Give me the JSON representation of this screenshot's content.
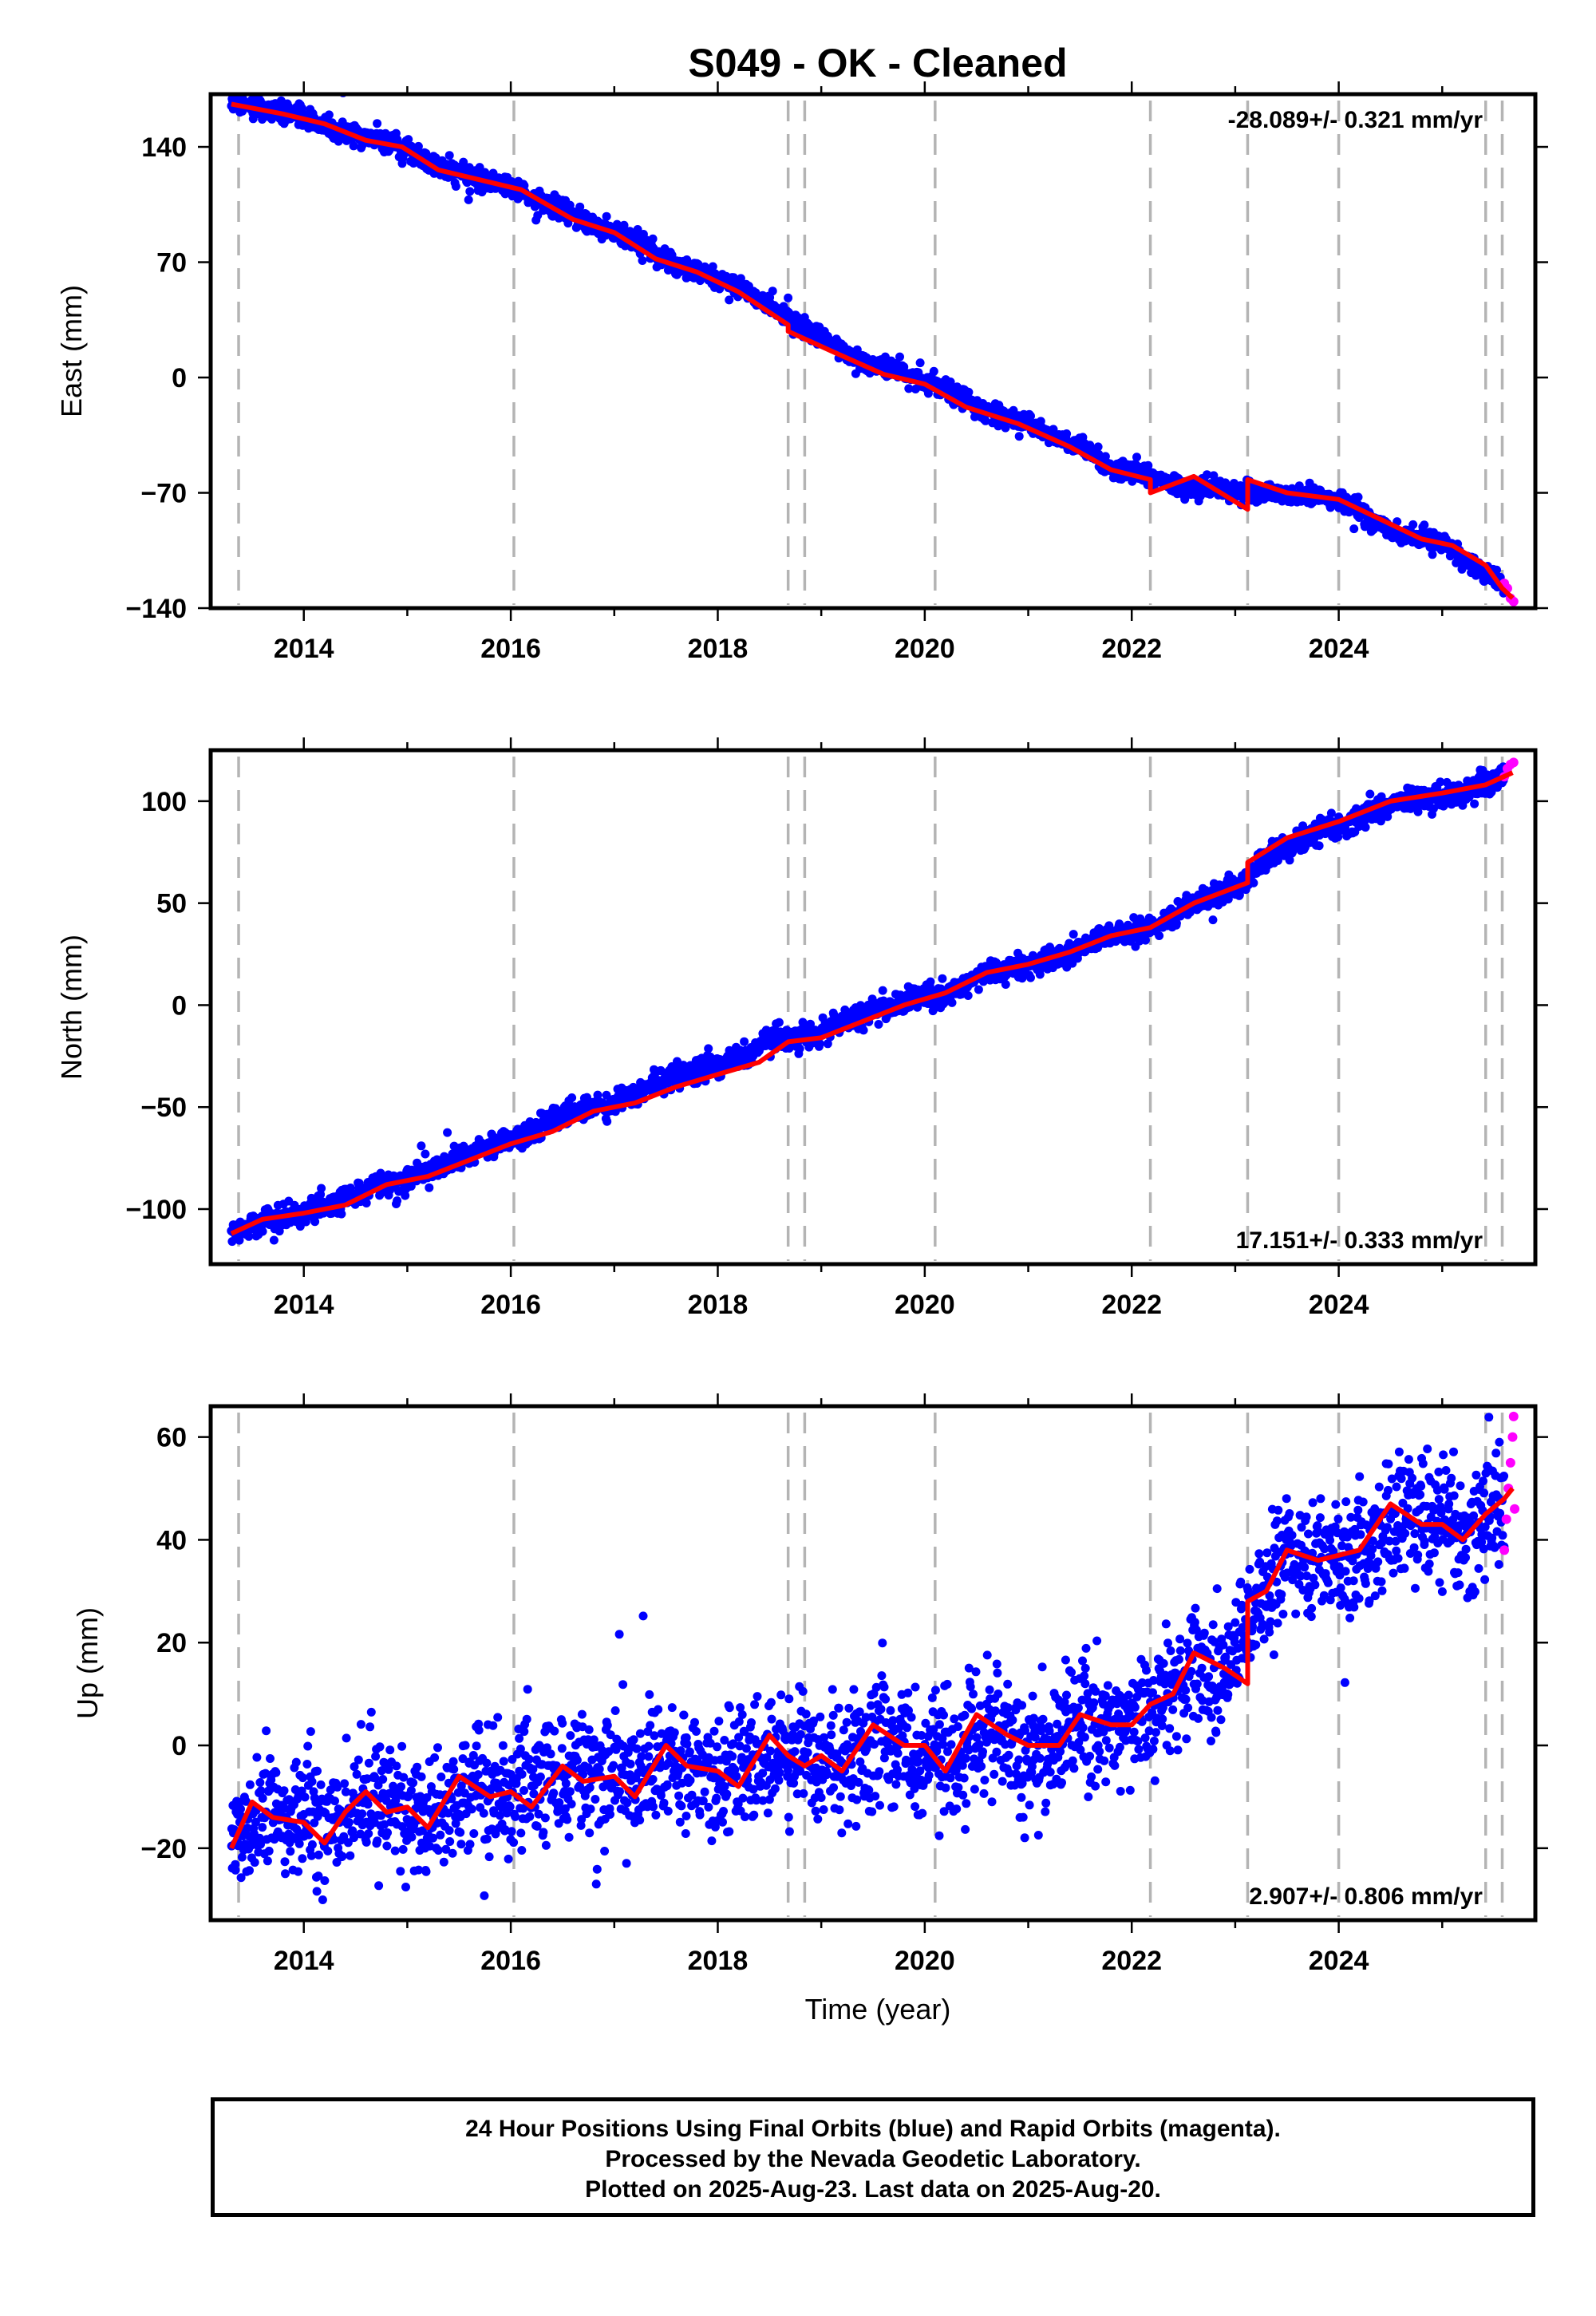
{
  "title": "S049  - OK - Cleaned",
  "xlabel": "Time (year)",
  "colors": {
    "final": "#0000ff",
    "rapid": "#ff00ff",
    "fit": "#ff0000",
    "events": "#b4b4b4"
  },
  "footer": [
    "24 Hour Positions Using Final Orbits (blue) and Rapid Orbits (magenta).",
    "Processed by the Nevada Geodetic Laboratory.",
    "Plotted on 2025-Aug-23. Last data on 2025-Aug-20."
  ],
  "chart_data": [
    {
      "type": "scatter",
      "ylabel": "East (mm)",
      "rate_text": "-28.089+/- 0.321 mm/yr",
      "rate_position": "top-right",
      "xlim": [
        2013.1,
        2025.9
      ],
      "ylim": [
        -140,
        172
      ],
      "xticks": [
        "2014",
        "2016",
        "2018",
        "2020",
        "2022",
        "2024"
      ],
      "yticks": [
        "140",
        "70",
        "0",
        "−70",
        "−140"
      ],
      "ytick_values": [
        140,
        70,
        0,
        -70,
        -140
      ],
      "event_lines": [
        2013.37,
        2016.03,
        2018.68,
        2018.84,
        2020.1,
        2022.18,
        2023.12,
        2024.0,
        2025.42,
        2025.58
      ],
      "series": [
        {
          "name": "Final Orbits",
          "color": "#0000ff",
          "x": [
            2013.3,
            2013.7,
            2014.0,
            2014.3,
            2014.6,
            2014.9,
            2015.2,
            2015.6,
            2016.0,
            2016.4,
            2016.8,
            2017.2,
            2017.6,
            2018.0,
            2018.4,
            2018.7,
            2019.0,
            2019.4,
            2019.8,
            2020.2,
            2020.6,
            2021.0,
            2021.4,
            2021.8,
            2022.2,
            2022.5,
            2022.8,
            2023.1,
            2023.4,
            2023.8,
            2024.0,
            2024.3,
            2024.6,
            2025.0,
            2025.3,
            2025.6
          ],
          "y": [
            168,
            162,
            158,
            150,
            146,
            142,
            130,
            122,
            116,
            104,
            92,
            84,
            68,
            60,
            48,
            34,
            24,
            10,
            2,
            -6,
            -20,
            -28,
            -40,
            -54,
            -60,
            -68,
            -66,
            -70,
            -70,
            -72,
            -74,
            -86,
            -96,
            -100,
            -114,
            -126
          ],
          "noise_mm": 3,
          "samples": 2200
        },
        {
          "name": "Rapid Orbits",
          "color": "#ff00ff",
          "x": [
            2025.6,
            2025.63,
            2025.66,
            2025.69
          ],
          "y": [
            -125,
            -128,
            -134,
            -136
          ]
        }
      ],
      "fit": {
        "x": [
          2013.3,
          2013.8,
          2014.2,
          2014.6,
          2014.95,
          2015.3,
          2015.7,
          2016.1,
          2016.6,
          2017.0,
          2017.4,
          2017.8,
          2018.2,
          2018.68,
          2018.68,
          2019.1,
          2019.6,
          2020.0,
          2020.4,
          2020.9,
          2021.4,
          2021.8,
          2022.18,
          2022.18,
          2022.6,
          2023.12,
          2023.12,
          2023.5,
          2024.0,
          2024.4,
          2024.8,
          2025.1,
          2025.42,
          2025.58,
          2025.68
        ],
        "y": [
          166,
          160,
          154,
          144,
          140,
          126,
          120,
          114,
          96,
          88,
          72,
          64,
          52,
          32,
          28,
          16,
          2,
          -4,
          -18,
          -28,
          -42,
          -56,
          -62,
          -70,
          -60,
          -80,
          -62,
          -70,
          -74,
          -86,
          -98,
          -102,
          -114,
          -128,
          -134
        ]
      }
    },
    {
      "type": "scatter",
      "ylabel": "North (mm)",
      "rate_text": "17.151+/- 0.333 mm/yr",
      "rate_position": "bottom-right",
      "xlim": [
        2013.1,
        2025.9
      ],
      "ylim": [
        -127,
        125
      ],
      "xticks": [
        "2014",
        "2016",
        "2018",
        "2020",
        "2022",
        "2024"
      ],
      "yticks": [
        "100",
        "50",
        "0",
        "−50",
        "−100"
      ],
      "ytick_values": [
        100,
        50,
        0,
        -50,
        -100
      ],
      "event_lines": [
        2013.37,
        2016.03,
        2018.68,
        2018.84,
        2020.1,
        2022.18,
        2023.12,
        2024.0,
        2025.42,
        2025.58
      ],
      "series": [
        {
          "name": "Final Orbits",
          "color": "#0000ff",
          "x": [
            2013.3,
            2013.7,
            2014.0,
            2014.3,
            2014.7,
            2015.0,
            2015.4,
            2015.8,
            2016.2,
            2016.6,
            2017.0,
            2017.4,
            2017.8,
            2018.2,
            2018.6,
            2019.0,
            2019.4,
            2019.8,
            2020.2,
            2020.6,
            2021.0,
            2021.4,
            2021.8,
            2022.2,
            2022.6,
            2023.0,
            2023.4,
            2023.8,
            2024.2,
            2024.6,
            2025.0,
            2025.4,
            2025.6
          ],
          "y": [
            -112,
            -104,
            -102,
            -98,
            -88,
            -86,
            -78,
            -68,
            -62,
            -52,
            -48,
            -38,
            -32,
            -26,
            -16,
            -14,
            -4,
            2,
            6,
            16,
            20,
            26,
            34,
            38,
            50,
            58,
            76,
            84,
            92,
            100,
            102,
            108,
            112
          ],
          "noise_mm": 3,
          "samples": 2200
        },
        {
          "name": "Rapid Orbits",
          "color": "#ff00ff",
          "x": [
            2025.6,
            2025.63,
            2025.66,
            2025.69
          ],
          "y": [
            112,
            116,
            118,
            119
          ]
        }
      ],
      "fit": {
        "x": [
          2013.3,
          2013.6,
          2014.0,
          2014.4,
          2014.8,
          2015.2,
          2015.6,
          2016.0,
          2016.4,
          2016.8,
          2017.2,
          2017.6,
          2018.0,
          2018.4,
          2018.68,
          2019.0,
          2019.4,
          2019.8,
          2020.2,
          2020.6,
          2021.0,
          2021.4,
          2021.8,
          2022.18,
          2022.6,
          2023.12,
          2023.12,
          2023.5,
          2024.0,
          2024.5,
          2025.0,
          2025.42,
          2025.68
        ],
        "y": [
          -112,
          -105,
          -102,
          -98,
          -88,
          -84,
          -76,
          -68,
          -62,
          -52,
          -48,
          -40,
          -34,
          -28,
          -18,
          -16,
          -8,
          0,
          6,
          16,
          20,
          26,
          34,
          38,
          50,
          60,
          70,
          82,
          90,
          100,
          104,
          108,
          114
        ]
      }
    },
    {
      "type": "scatter",
      "ylabel": "Up (mm)",
      "rate_text": "2.907+/- 0.806 mm/yr",
      "rate_position": "bottom-right",
      "xlim": [
        2013.1,
        2025.9
      ],
      "ylim": [
        -34,
        66
      ],
      "xticks": [
        "2014",
        "2016",
        "2018",
        "2020",
        "2022",
        "2024"
      ],
      "yticks": [
        "60",
        "40",
        "20",
        "0",
        "−20"
      ],
      "ytick_values": [
        60,
        40,
        20,
        0,
        -20
      ],
      "event_lines": [
        2013.37,
        2016.03,
        2018.68,
        2018.84,
        2020.1,
        2022.18,
        2023.12,
        2024.0,
        2025.42,
        2025.58
      ],
      "series": [
        {
          "name": "Final Orbits",
          "color": "#0000ff",
          "x": [
            2013.3,
            2013.6,
            2013.9,
            2014.2,
            2014.5,
            2014.8,
            2015.1,
            2015.4,
            2015.7,
            2016.0,
            2016.3,
            2016.6,
            2016.9,
            2017.2,
            2017.5,
            2017.8,
            2018.1,
            2018.4,
            2018.7,
            2019.0,
            2019.3,
            2019.6,
            2019.9,
            2020.2,
            2020.5,
            2020.8,
            2021.1,
            2021.4,
            2021.7,
            2022.0,
            2022.3,
            2022.6,
            2022.9,
            2023.2,
            2023.5,
            2023.8,
            2024.1,
            2024.4,
            2024.7,
            2025.0,
            2025.3,
            2025.6
          ],
          "y": [
            -18,
            -12,
            -14,
            -16,
            -12,
            -10,
            -14,
            -12,
            -6,
            -10,
            -8,
            -4,
            -6,
            -8,
            -2,
            -4,
            -6,
            -4,
            0,
            -2,
            -4,
            2,
            -2,
            -4,
            4,
            0,
            -2,
            4,
            6,
            4,
            10,
            16,
            14,
            26,
            38,
            36,
            36,
            42,
            46,
            42,
            42,
            48
          ],
          "noise_mm": 6,
          "samples": 2400
        },
        {
          "name": "Rapid Orbits",
          "color": "#ff00ff",
          "x": [
            2025.6,
            2025.62,
            2025.64,
            2025.66,
            2025.68,
            2025.69,
            2025.7
          ],
          "y": [
            38,
            44,
            50,
            55,
            60,
            64,
            46
          ]
        }
      ],
      "fit": {
        "x": [
          2013.3,
          2013.5,
          2013.7,
          2014.0,
          2014.2,
          2014.4,
          2014.6,
          2014.8,
          2015.0,
          2015.2,
          2015.5,
          2015.8,
          2016.0,
          2016.2,
          2016.5,
          2016.7,
          2017.0,
          2017.2,
          2017.5,
          2017.7,
          2018.0,
          2018.2,
          2018.5,
          2018.68,
          2018.84,
          2019.0,
          2019.2,
          2019.5,
          2019.8,
          2020.0,
          2020.2,
          2020.5,
          2020.8,
          2021.0,
          2021.3,
          2021.5,
          2021.8,
          2022.0,
          2022.18,
          2022.4,
          2022.6,
          2022.9,
          2023.12,
          2023.12,
          2023.3,
          2023.5,
          2023.8,
          2024.0,
          2024.2,
          2024.5,
          2024.8,
          2025.0,
          2025.2,
          2025.42,
          2025.6,
          2025.68
        ],
        "y": [
          -20,
          -11,
          -14,
          -15,
          -19,
          -13,
          -9,
          -13,
          -12,
          -16,
          -6,
          -10,
          -9,
          -12,
          -4,
          -7,
          -6,
          -10,
          0,
          -4,
          -5,
          -8,
          2,
          -2,
          -4,
          -2,
          -5,
          4,
          0,
          0,
          -5,
          6,
          2,
          0,
          0,
          6,
          4,
          4,
          8,
          10,
          18,
          15,
          12,
          28,
          30,
          38,
          36,
          37,
          38,
          47,
          43,
          43,
          40,
          45,
          48,
          50
        ]
      }
    }
  ]
}
